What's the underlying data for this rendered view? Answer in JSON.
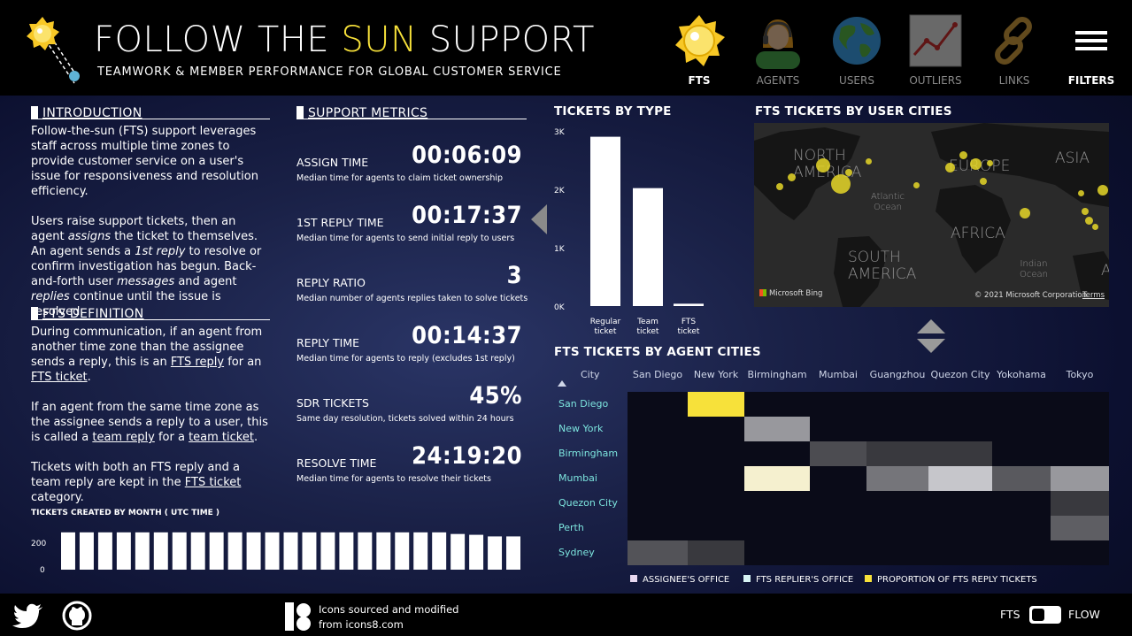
{
  "header": {
    "title_pre": "FOLLOW THE ",
    "title_sun": "SUN",
    "title_post": " SUPPORT",
    "subtitle": "TEAMWORK & MEMBER PERFORMANCE FOR GLOBAL CUSTOMER SERVICE"
  },
  "nav": [
    {
      "label": "FTS",
      "icon": "sun-icon",
      "active": true
    },
    {
      "label": "AGENTS",
      "icon": "agent-headset-icon",
      "active": false
    },
    {
      "label": "USERS",
      "icon": "globe-icon",
      "active": false
    },
    {
      "label": "OUTLIERS",
      "icon": "line-chart-icon",
      "active": false
    },
    {
      "label": "LINKS",
      "icon": "chain-link-icon",
      "active": false
    },
    {
      "label": "FILTERS",
      "icon": "hamburger-menu-icon",
      "active": false
    }
  ],
  "intro": {
    "heading": "INTRODUCTION",
    "p1": "Follow-the-sun (FTS) support leverages staff across multiple time zones to provide customer service on a user's issue for responsiveness and resolution efficiency.",
    "p2_a": "Users raise support tickets, then an agent ",
    "p2_b": "assigns",
    "p2_c": " the ticket to themselves. An agent sends a ",
    "p2_d": "1st reply",
    "p2_e": " to resolve or confirm investigation has begun. Back-and-forth user ",
    "p2_f": "messages",
    "p2_g": " and agent ",
    "p2_h": "replies",
    "p2_i": " continue until the issue is resolved."
  },
  "definition": {
    "heading": "FTS DEFINITION",
    "p1_a": "During communication, if an agent from another time zone than the assignee sends a reply, this is an ",
    "p1_b": "FTS reply",
    "p1_c": " for an ",
    "p1_d": "FTS ticket",
    "p1_e": ".",
    "p2_a": "If an agent from the same time zone as the assignee sends a reply to a user, this is called a ",
    "p2_b": "team reply",
    "p2_c": " for a ",
    "p2_d": "team ticket",
    "p2_e": ".",
    "p3_a": "Tickets with both an FTS reply and a team reply are kept in the ",
    "p3_b": "FTS ticket ",
    "p3_c": "category."
  },
  "metrics": {
    "heading": "SUPPORT METRICS",
    "items": [
      {
        "label": "ASSIGN TIME",
        "value": "00:06:09",
        "desc": "Median time for agents to claim ticket ownership"
      },
      {
        "label": "1ST REPLY TIME",
        "value": "00:17:37",
        "desc": "Median time for agents to send initial reply to users"
      },
      {
        "label": "REPLY RATIO",
        "value": "3",
        "desc": "Median number of agents replies taken to solve tickets"
      },
      {
        "label": "REPLY TIME",
        "value": "00:14:37",
        "desc": "Median time for agents to reply (excludes 1st reply)"
      },
      {
        "label": "SDR TICKETS",
        "value": "45%",
        "desc": "Same day resolution, tickets solved within 24 hours"
      },
      {
        "label": "RESOLVE TIME",
        "value": "24:19:20",
        "desc": "Median time for agents to resolve their tickets"
      }
    ]
  },
  "monthly": {
    "title": "TICKETS CREATED BY MONTH   ( UTC TIME )",
    "ticks": [
      "200",
      "0"
    ]
  },
  "tickets_by_type": {
    "title": "TICKETS BY TYPE"
  },
  "map": {
    "title": "FTS TICKETS BY USER CITIES",
    "labels": {
      "north_america": "NORTH\nAMERICA",
      "europe": "EUROPE",
      "asia": "ASIA",
      "africa": "AFRICA",
      "south_america": "SOUTH\nAMERICA",
      "atlantic": "Atlantic\nOcean",
      "indian": "Indian\nOcean",
      "au": "AU"
    },
    "bing": "Microsoft Bing",
    "copyright": "© 2021 Microsoft Corporation",
    "terms": "Terms"
  },
  "heatmap": {
    "title": "FTS TICKETS BY AGENT CITIES",
    "corner": "City",
    "columns": [
      "San Diego",
      "New York",
      "Birmingham",
      "Mumbai",
      "Guangzhou",
      "Quezon City",
      "Yokohama",
      "Tokyo"
    ],
    "rows": [
      "San Diego",
      "New York",
      "Birmingham",
      "Mumbai",
      "Quezon City",
      "Perth",
      "Sydney"
    ],
    "legend": [
      "ASSIGNEE'S OFFICE",
      "FTS REPLIER'S OFFICE",
      "PROPORTION OF FTS REPLY TICKETS"
    ],
    "legend_colors": [
      "#e8d8f0",
      "#d8f4f4",
      "#f7e13a"
    ]
  },
  "footer": {
    "credit_line1": "Icons sourced and modified",
    "credit_line2": "from icons8.com",
    "toggle_left": "FTS",
    "toggle_right": "FLOW"
  },
  "chart_data": [
    {
      "type": "bar",
      "title": "TICKETS BY TYPE",
      "categories": [
        "Regular\nticket",
        "Team\nticket",
        "FTS\nticket"
      ],
      "values": [
        2900,
        2020,
        40
      ],
      "ylim": [
        0,
        3000
      ],
      "yticks": [
        "3K",
        "2K",
        "1K",
        "0K"
      ]
    },
    {
      "type": "bar",
      "title": "TICKETS CREATED BY MONTH   ( UTC TIME )",
      "values": [
        230,
        230,
        230,
        230,
        230,
        230,
        230,
        230,
        230,
        230,
        230,
        230,
        230,
        230,
        230,
        230,
        230,
        230,
        230,
        230,
        230,
        220,
        215,
        205,
        205
      ],
      "ylim": [
        0,
        240
      ]
    },
    {
      "type": "heatmap",
      "title": "FTS TICKETS BY AGENT CITIES",
      "rows": [
        "San Diego",
        "New York",
        "Birmingham",
        "Mumbai",
        "Quezon City",
        "Perth",
        "Sydney"
      ],
      "columns": [
        "San Diego",
        "New York",
        "Birmingham",
        "Mumbai",
        "Guangzhou",
        "Quezon City",
        "Yokohama",
        "Tokyo"
      ],
      "values": [
        [
          0,
          1.0,
          0,
          0,
          0,
          0,
          0,
          0
        ],
        [
          0,
          0,
          0.55,
          0,
          0,
          0,
          0,
          0
        ],
        [
          0,
          0,
          0,
          0.22,
          0.14,
          0.14,
          0,
          0
        ],
        [
          0,
          0,
          0.95,
          0,
          0.4,
          0.75,
          0.28,
          0.55
        ],
        [
          0,
          0,
          0,
          0,
          0,
          0,
          0,
          0.14
        ],
        [
          0,
          0,
          0,
          0,
          0,
          0,
          0,
          0.3
        ],
        [
          0.25,
          0.14,
          0,
          0,
          0,
          0,
          0,
          0
        ]
      ]
    }
  ]
}
